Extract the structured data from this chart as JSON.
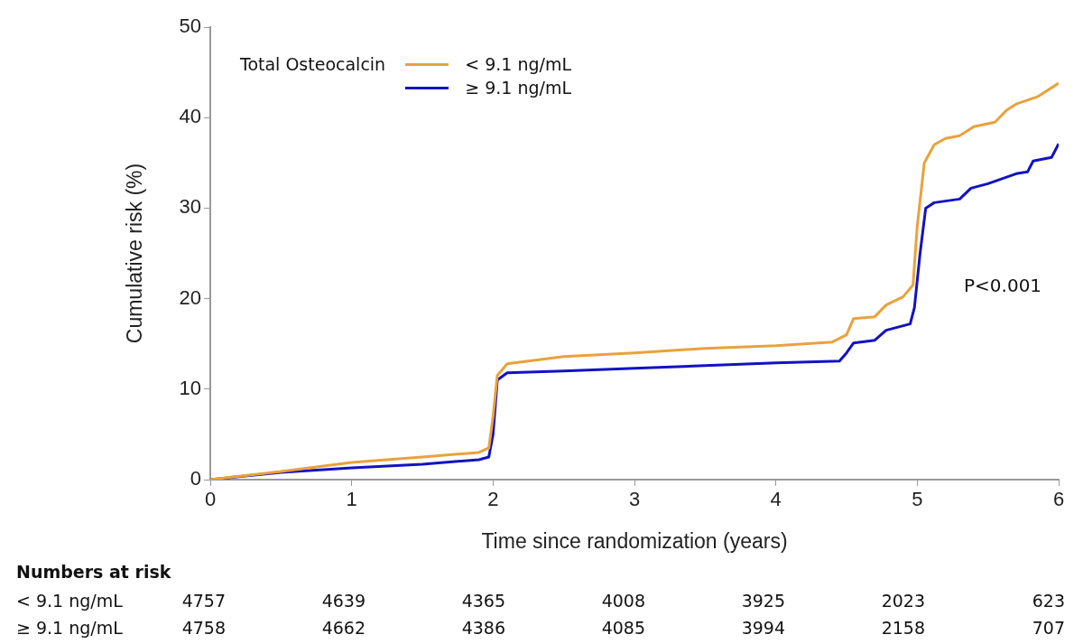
{
  "chart_data": {
    "type": "line",
    "xlabel": "Time since randomization (years)",
    "ylabel": "Cumulative risk (%)",
    "legend_title": "Total Osteocalcin",
    "legend": "top left",
    "grid": false,
    "marker": "none",
    "line_style": "solid",
    "xlim": [
      0,
      6
    ],
    "xticks": [
      0,
      1,
      2,
      3,
      4,
      5,
      6
    ],
    "ylim": [
      0,
      50
    ],
    "yticks": [
      0,
      10,
      20,
      30,
      40,
      50
    ],
    "series": [
      {
        "name": "< 9.1 ng/mL",
        "color": "#e9a23b",
        "x": [
          0,
          0.5,
          1,
          1.5,
          1.9,
          1.97,
          2.0,
          2.03,
          2.1,
          2.5,
          3,
          3.5,
          4,
          4.4,
          4.5,
          4.55,
          4.7,
          4.78,
          4.9,
          4.97,
          5.0,
          5.05,
          5.12,
          5.2,
          5.3,
          5.4,
          5.55,
          5.63,
          5.7,
          5.85,
          6
        ],
        "values": [
          0,
          0.9,
          1.9,
          2.5,
          3.0,
          3.5,
          7,
          11.5,
          12.8,
          13.6,
          14.0,
          14.5,
          14.8,
          15.2,
          16.0,
          17.8,
          18.0,
          19.3,
          20.2,
          21.5,
          28,
          35,
          37.0,
          37.7,
          38,
          39,
          39.5,
          40.8,
          41.5,
          42.3,
          43.8
        ]
      },
      {
        "name": "≥ 9.1 ng/mL",
        "color": "#1212c4",
        "x": [
          0,
          0.5,
          1,
          1.5,
          1.9,
          1.97,
          2.0,
          2.03,
          2.1,
          2.5,
          3,
          3.5,
          4,
          4.45,
          4.5,
          4.55,
          4.7,
          4.78,
          4.95,
          4.98,
          5.02,
          5.06,
          5.12,
          5.3,
          5.38,
          5.5,
          5.7,
          5.78,
          5.82,
          5.95,
          6
        ],
        "values": [
          0,
          0.8,
          1.3,
          1.7,
          2.2,
          2.5,
          5,
          11.0,
          11.8,
          12.0,
          12.3,
          12.6,
          12.9,
          13.1,
          14.0,
          15.1,
          15.4,
          16.5,
          17.2,
          19,
          25,
          30.0,
          30.6,
          31.0,
          32.2,
          32.7,
          33.8,
          34.0,
          35.2,
          35.6,
          37.1
        ]
      }
    ],
    "annotations": [
      "P<0.001",
      "Numbers at risk",
      "< 9.1 ng/mL",
      "4757",
      "4639",
      "4365",
      "4008",
      "3925",
      "2023",
      "623",
      "≥ 9.1 ng/mL",
      "4758",
      "4662",
      "4386",
      "4085",
      "3994",
      "2158",
      "707"
    ]
  }
}
